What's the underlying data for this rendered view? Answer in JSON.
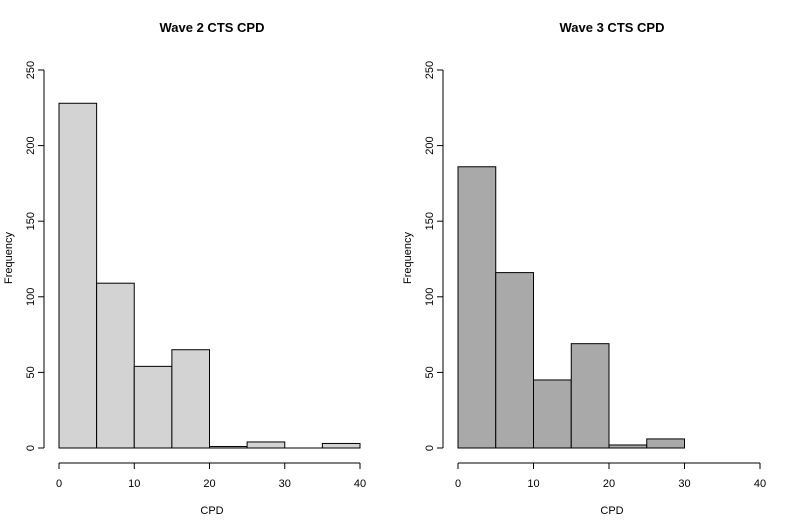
{
  "chart_data": [
    {
      "type": "bar",
      "title": "Wave 2 CTS CPD",
      "xlabel": "CPD",
      "ylabel": "Frequency",
      "bin_edges": [
        0,
        5,
        10,
        15,
        20,
        25,
        30,
        35,
        40
      ],
      "values": [
        228,
        109,
        54,
        65,
        1,
        4,
        0,
        3
      ],
      "xlim": [
        0,
        40
      ],
      "ylim": [
        0,
        250
      ],
      "xticks": [
        0,
        10,
        20,
        30,
        40
      ],
      "yticks": [
        0,
        50,
        100,
        150,
        200,
        250
      ],
      "bar_color": "#d3d3d3",
      "grid": false
    },
    {
      "type": "bar",
      "title": "Wave 3 CTS CPD",
      "xlabel": "CPD",
      "ylabel": "Frequency",
      "bin_edges": [
        0,
        5,
        10,
        15,
        20,
        25,
        30
      ],
      "values": [
        186,
        116,
        45,
        69,
        2,
        6
      ],
      "xlim": [
        0,
        40
      ],
      "ylim": [
        0,
        250
      ],
      "xticks": [
        0,
        10,
        20,
        30,
        40
      ],
      "yticks": [
        0,
        50,
        100,
        150,
        200,
        250
      ],
      "bar_color": "#a9a9a9",
      "grid": false
    }
  ]
}
